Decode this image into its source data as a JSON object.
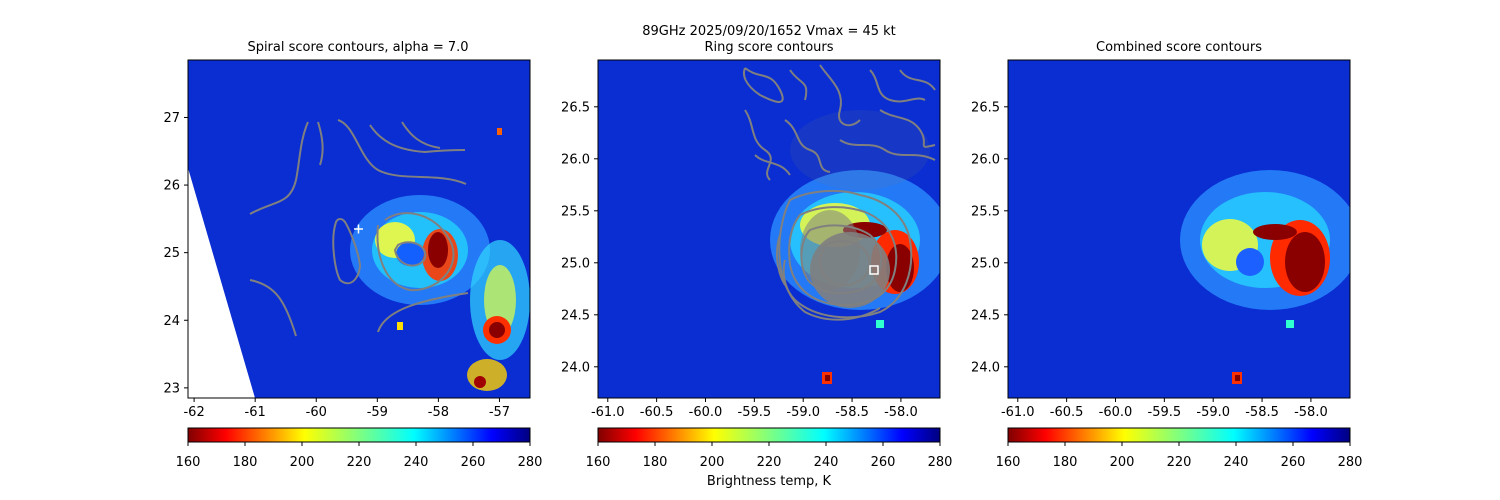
{
  "suptitle": {
    "line1": "89GHz  2025/09/20/1652    Vmax = 45 kt",
    "line2": "Ring score contours"
  },
  "colorbar_label": "Brightness temp, K",
  "colors": {
    "contour": "#808080",
    "background": "#0a2fd6",
    "marker": "#ffffff"
  },
  "chart_data": [
    {
      "type": "heatmap",
      "title": "Spiral score contours, alpha =  7.0",
      "x_ticks": [
        "-62",
        "-61",
        "-60",
        "-59",
        "-58",
        "-57"
      ],
      "x_tick_values": [
        -62,
        -61,
        -60,
        -59,
        -58,
        -57
      ],
      "y_ticks": [
        "23",
        "24",
        "25",
        "26",
        "27"
      ],
      "y_tick_values": [
        23,
        24,
        25,
        26,
        27
      ],
      "xlim": [
        -62.1,
        -56.5
      ],
      "ylim": [
        22.85,
        27.85
      ],
      "colormap": "jet_r",
      "color_range": [
        160,
        280
      ],
      "colorbar_ticks": [
        "160",
        "180",
        "200",
        "220",
        "240",
        "260",
        "280"
      ],
      "center_marker": {
        "symbol": "+",
        "x": -59.3,
        "y": 25.33
      },
      "contours": "spiral",
      "grid": false
    },
    {
      "type": "heatmap",
      "title": "Ring score contours",
      "x_ticks": [
        "-61.0",
        "-60.5",
        "-60.0",
        "-59.5",
        "-59.0",
        "-58.5",
        "-58.0"
      ],
      "x_tick_values": [
        -61.0,
        -60.5,
        -60.0,
        -59.5,
        -59.0,
        -58.5,
        -58.0
      ],
      "y_ticks": [
        "24.0",
        "24.5",
        "25.0",
        "25.5",
        "26.0",
        "26.5"
      ],
      "y_tick_values": [
        24.0,
        24.5,
        25.0,
        25.5,
        26.0,
        26.5
      ],
      "xlim": [
        -61.1,
        -57.6
      ],
      "ylim": [
        23.7,
        26.95
      ],
      "colormap": "jet_r",
      "color_range": [
        160,
        280
      ],
      "colorbar_ticks": [
        "160",
        "180",
        "200",
        "220",
        "240",
        "260",
        "280"
      ],
      "center_marker": {
        "symbol": "square",
        "x": -58.25,
        "y": 24.93
      },
      "contours": "ring",
      "grid": false
    },
    {
      "type": "heatmap",
      "title": "Combined score contours",
      "x_ticks": [
        "-61.0",
        "-60.5",
        "-60.0",
        "-59.5",
        "-59.0",
        "-58.5",
        "-58.0"
      ],
      "x_tick_values": [
        -61.0,
        -60.5,
        -60.0,
        -59.5,
        -59.0,
        -58.5,
        -58.0
      ],
      "y_ticks": [
        "24.0",
        "24.5",
        "25.0",
        "25.5",
        "26.0",
        "26.5"
      ],
      "y_tick_values": [
        24.0,
        24.5,
        25.0,
        25.5,
        26.0,
        26.5
      ],
      "xlim": [
        -61.1,
        -57.6
      ],
      "ylim": [
        23.7,
        26.95
      ],
      "colormap": "jet_r",
      "color_range": [
        160,
        280
      ],
      "colorbar_ticks": [
        "160",
        "180",
        "200",
        "220",
        "240",
        "260",
        "280"
      ],
      "contours": "none",
      "grid": false
    }
  ]
}
